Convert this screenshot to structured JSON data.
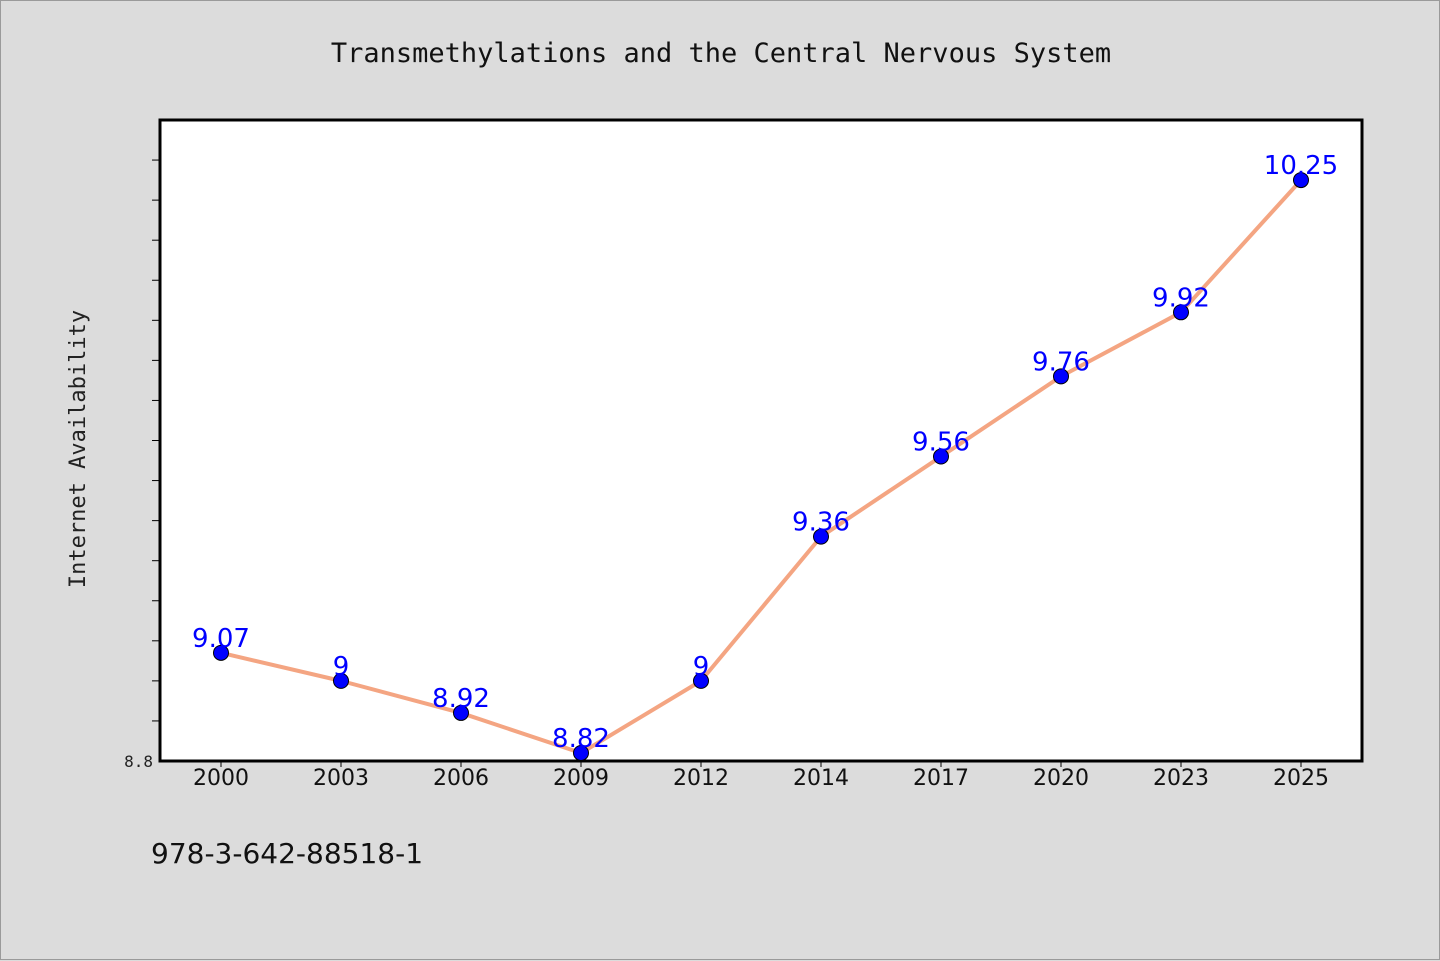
{
  "chart_data": {
    "type": "line",
    "title": "Transmethylations and the Central Nervous System",
    "xlabel": "",
    "ylabel": "Internet Availability",
    "categories": [
      "2000",
      "2003",
      "2006",
      "2009",
      "2012",
      "2014",
      "2017",
      "2020",
      "2023",
      "2025"
    ],
    "series": [
      {
        "values": [
          9.07,
          9.0,
          8.92,
          8.82,
          9.0,
          9.36,
          9.56,
          9.76,
          9.92,
          10.25
        ],
        "labels": [
          "9.07",
          "9",
          "8.92",
          "8.82",
          "9",
          "9.36",
          "9.56",
          "9.76",
          "9.92",
          "10.25"
        ],
        "line_color": "#f4a582",
        "marker_color": "#0000ff"
      }
    ],
    "ylim": [
      8.8,
      10.4
    ],
    "y_min_label": "8.8",
    "y_minor_step": 0.1,
    "grid": false,
    "legend": "none"
  },
  "footer": {
    "text": "978-3-642-88518-1"
  }
}
